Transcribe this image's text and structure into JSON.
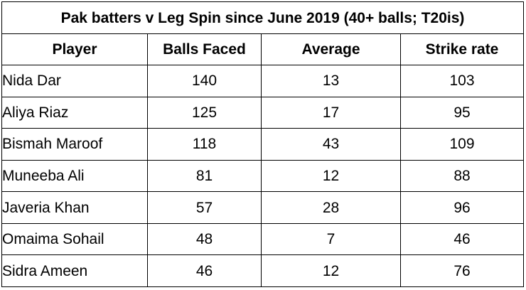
{
  "table": {
    "title": "Pak batters v Leg Spin since June 2019 (40+ balls; T20is)",
    "headers": [
      "Player",
      "Balls Faced",
      "Average",
      "Strike rate"
    ],
    "rows": [
      {
        "player": "Nida Dar",
        "balls_faced": "140",
        "average": "13",
        "strike_rate": "103"
      },
      {
        "player": "Aliya Riaz",
        "balls_faced": "125",
        "average": "17",
        "strike_rate": "95"
      },
      {
        "player": "Bismah Maroof",
        "balls_faced": "118",
        "average": "43",
        "strike_rate": "109"
      },
      {
        "player": "Muneeba Ali",
        "balls_faced": "81",
        "average": "12",
        "strike_rate": "88"
      },
      {
        "player": "Javeria Khan",
        "balls_faced": "57",
        "average": "28",
        "strike_rate": "96"
      },
      {
        "player": "Omaima Sohail",
        "balls_faced": "48",
        "average": "7",
        "strike_rate": "46"
      },
      {
        "player": "Sidra Ameen",
        "balls_faced": "46",
        "average": "12",
        "strike_rate": "76"
      }
    ]
  }
}
